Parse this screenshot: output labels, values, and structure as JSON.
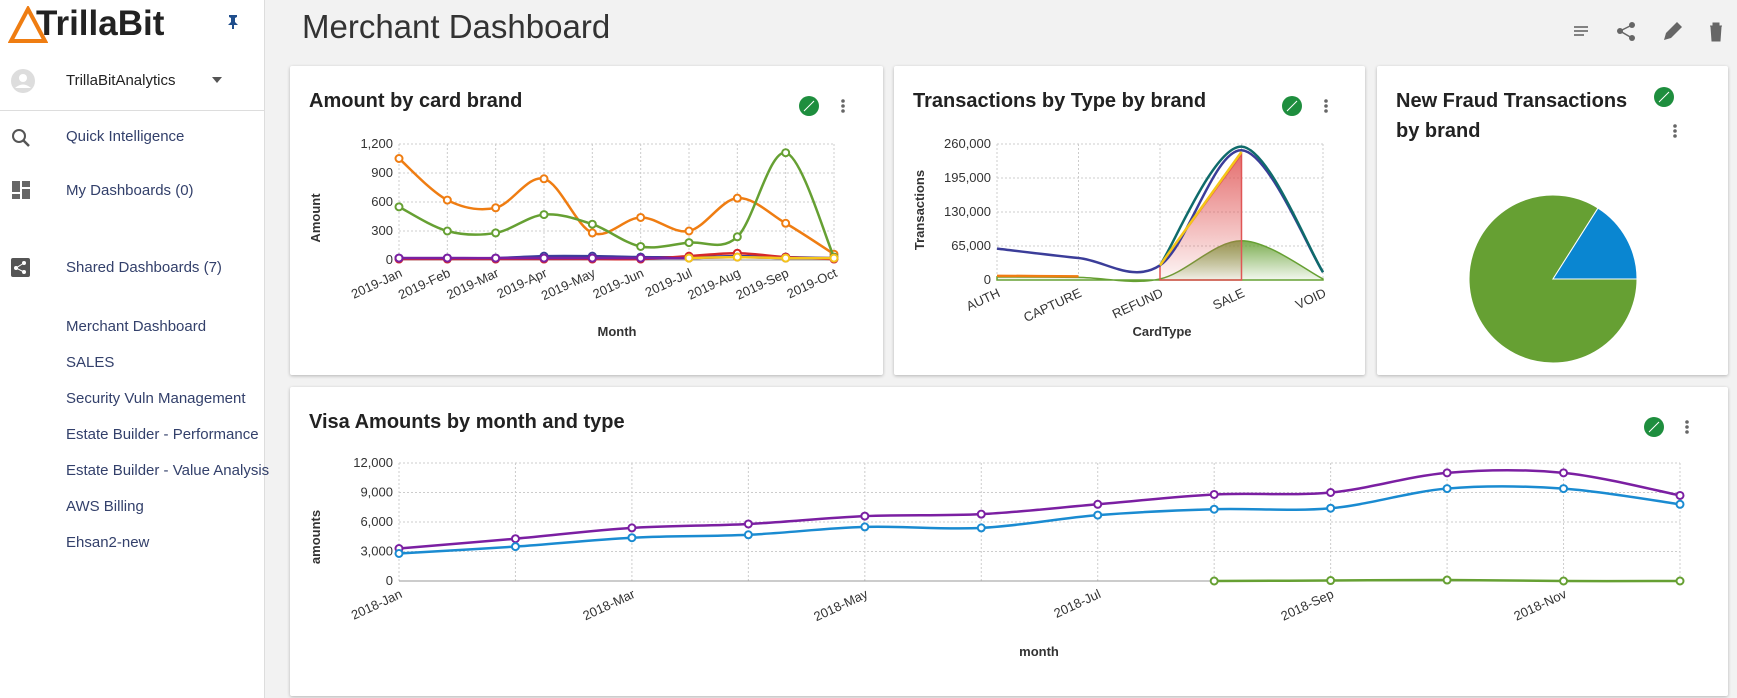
{
  "sidebar": {
    "brand": "TrillaBit",
    "user": "TrillaBitAnalytics",
    "menu": [
      "Quick Intelligence",
      "My Dashboards (0)",
      "Shared Dashboards (7)"
    ],
    "shared": [
      "Merchant Dashboard",
      "SALES",
      "Security Vuln Management",
      "Estate Builder - Performance",
      "Estate Builder - Value Analysis",
      "AWS Billing",
      "Ehsan2-new"
    ]
  },
  "header": {
    "title": "Merchant Dashboard"
  },
  "chart_data": [
    {
      "type": "line",
      "title": "Amount by card brand",
      "x_label": "Month",
      "y_label": "Amount",
      "grid": true,
      "markers": true,
      "categories": [
        "2019-Jan",
        "2019-Feb",
        "2019-Mar",
        "2019-Apr",
        "2019-May",
        "2019-Jun",
        "2019-Jul",
        "2019-Aug",
        "2019-Sep",
        "2019-Oct"
      ],
      "ylim": [
        0,
        1200
      ],
      "yticks": [
        0,
        300,
        600,
        900,
        {
          "value": 1200,
          "label": "1,200"
        }
      ],
      "series": [
        {
          "color": "#ef7d12",
          "values": [
            1050,
            620,
            540,
            840,
            280,
            440,
            300,
            640,
            380,
            60
          ]
        },
        {
          "color": "#66a033",
          "values": [
            550,
            300,
            280,
            470,
            370,
            140,
            180,
            240,
            1110,
            30
          ]
        },
        {
          "color": "#3b3d99",
          "values": [
            20,
            20,
            20,
            40,
            40,
            30,
            30,
            40,
            30,
            20
          ]
        },
        {
          "color": "#d62728",
          "values": [
            10,
            10,
            10,
            10,
            10,
            10,
            40,
            70,
            30,
            10
          ]
        },
        {
          "color": "#7b1fa2",
          "values": [
            20,
            20,
            20,
            20,
            20,
            20,
            20,
            30,
            20,
            20
          ]
        },
        {
          "color": "#f5c518",
          "values": [
            null,
            null,
            null,
            null,
            null,
            null,
            20,
            30,
            20,
            20
          ]
        }
      ]
    },
    {
      "type": "line",
      "title": "Transactions by Type by brand",
      "x_label": "CardType",
      "y_label": "Transactions",
      "grid": true,
      "markers": false,
      "categories": [
        "AUTH",
        "CAPTURE",
        "REFUND",
        "SALE",
        "VOID"
      ],
      "ylim": [
        0,
        260000
      ],
      "yticks": [
        0,
        {
          "value": 65000,
          "label": "65,000"
        },
        {
          "value": 130000,
          "label": "130,000"
        },
        {
          "value": 195000,
          "label": "195,000"
        },
        {
          "value": 260000,
          "label": "260,000"
        }
      ],
      "series": [
        {
          "color": "#66a033",
          "area": true,
          "values": [
            6000,
            5000,
            2000,
            75000,
            2000
          ]
        },
        {
          "color": "#e05555",
          "area": true,
          "values": [
            null,
            null,
            28000,
            240000,
            null
          ]
        },
        {
          "color": "#3b3d99",
          "values": [
            60000,
            42000,
            28000,
            248000,
            15000
          ]
        },
        {
          "color": "#0f6b6b",
          "values": [
            null,
            null,
            28000,
            255000,
            15000
          ]
        },
        {
          "color": "#f5c518",
          "values": [
            null,
            null,
            28000,
            245000,
            null
          ]
        },
        {
          "color": "#ef7d12",
          "values": [
            8000,
            7000,
            null,
            null,
            null
          ]
        }
      ]
    },
    {
      "type": "pie",
      "title": "New Fraud Transactions by brand",
      "values": [
        84,
        16
      ],
      "colors": [
        "#66a033",
        "#0a86d1"
      ]
    },
    {
      "type": "line",
      "title": "Visa Amounts by month and type",
      "x_label": "month",
      "y_label": "amounts",
      "grid": true,
      "markers": true,
      "categories": [
        "2018-Jan",
        null,
        "2018-Mar",
        null,
        "2018-May",
        null,
        "2018-Jul",
        null,
        "2018-Sep",
        null,
        "2018-Nov",
        null
      ],
      "ylim": [
        0,
        12000
      ],
      "yticks": [
        0,
        {
          "value": 3000,
          "label": "3,000"
        },
        {
          "value": 6000,
          "label": "6,000"
        },
        {
          "value": 9000,
          "label": "9,000"
        },
        {
          "value": 12000,
          "label": "12,000"
        }
      ],
      "series": [
        {
          "color": "#7b1fa2",
          "values": [
            3300,
            4300,
            5400,
            5800,
            6600,
            6800,
            7800,
            8800,
            9000,
            11000,
            11000,
            8700
          ]
        },
        {
          "color": "#1a8bd1",
          "values": [
            2800,
            3500,
            4400,
            4700,
            5500,
            5400,
            6700,
            7300,
            7400,
            9400,
            9400,
            7800
          ]
        },
        {
          "color": "#66a033",
          "values": [
            null,
            null,
            null,
            null,
            null,
            null,
            null,
            0,
            50,
            100,
            0,
            0
          ]
        }
      ]
    }
  ]
}
